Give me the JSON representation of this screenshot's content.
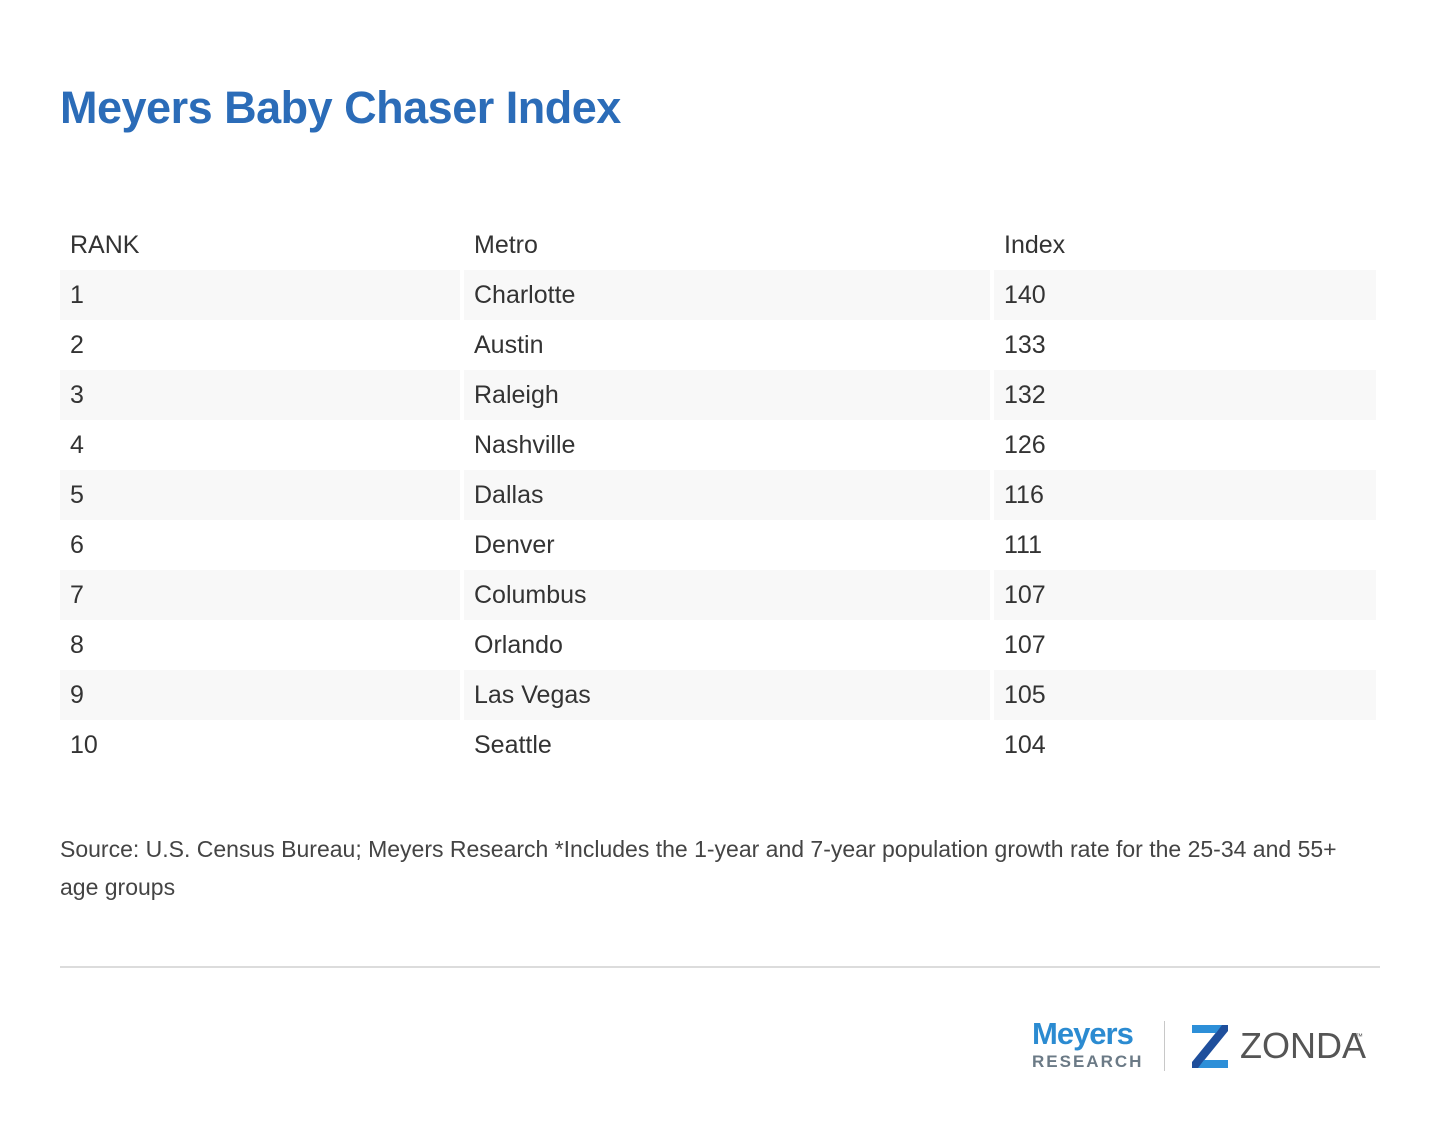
{
  "chart_data": {
    "type": "table",
    "title": "Meyers Baby Chaser Index",
    "columns": [
      "RANK",
      "Metro",
      "Index"
    ],
    "rows": [
      {
        "rank": "1",
        "metro": "Charlotte",
        "index": "140"
      },
      {
        "rank": "2",
        "metro": "Austin",
        "index": "133"
      },
      {
        "rank": "3",
        "metro": "Raleigh",
        "index": "132"
      },
      {
        "rank": "4",
        "metro": "Nashville",
        "index": "126"
      },
      {
        "rank": "5",
        "metro": "Dallas",
        "index": "116"
      },
      {
        "rank": "6",
        "metro": "Denver",
        "index": "111"
      },
      {
        "rank": "7",
        "metro": "Columbus",
        "index": "107"
      },
      {
        "rank": "8",
        "metro": "Orlando",
        "index": "107"
      },
      {
        "rank": "9",
        "metro": "Las Vegas",
        "index": "105"
      },
      {
        "rank": "10",
        "metro": "Seattle",
        "index": "104"
      }
    ],
    "source": "Source: U.S. Census Bureau; Meyers Research *Includes the 1-year and 7-year population growth rate for the 25-34 and 55+ age groups"
  },
  "logos": {
    "meyers_name": "Meyers",
    "meyers_sub": "RESEARCH",
    "zonda_name": "ZONDA",
    "zonda_tm": "™"
  },
  "colors": {
    "title": "#2b6cb8",
    "stripe": "#f8f8f8",
    "meyers_blue": "#2b8bd1",
    "zonda_dark": "#1f4f9c",
    "zonda_light": "#2d8fd8"
  }
}
